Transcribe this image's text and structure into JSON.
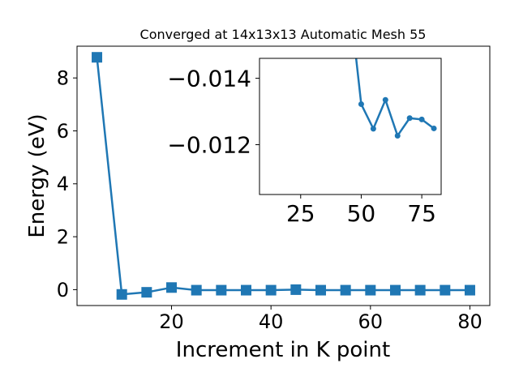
{
  "chart_data": [
    {
      "type": "line",
      "title": "Converged at 14x13x13 Automatic Mesh 55",
      "xlabel": "Increment in K point",
      "ylabel": "Energy (eV)",
      "xlim": [
        1,
        84
      ],
      "ylim": [
        -0.6,
        9.2
      ],
      "x_ticks": [
        20,
        40,
        60,
        80
      ],
      "y_ticks": [
        0,
        2,
        4,
        6,
        8
      ],
      "marker": "square",
      "grid": false,
      "series": [
        {
          "color": "#1f77b4",
          "x": [
            5,
            10,
            15,
            20,
            25,
            30,
            35,
            40,
            45,
            50,
            55,
            60,
            65,
            70,
            75,
            80
          ],
          "y": [
            8.78,
            -0.18,
            -0.1,
            0.08,
            -0.02,
            -0.02,
            -0.02,
            -0.02,
            0.0,
            -0.02,
            -0.02,
            -0.02,
            -0.02,
            -0.02,
            -0.02,
            -0.02
          ]
        }
      ]
    },
    {
      "type": "line",
      "title": "",
      "xlabel": "",
      "ylabel": "",
      "xlim": [
        8,
        83
      ],
      "ylim": [
        -0.0105,
        -0.0146
      ],
      "inverted_y": true,
      "x_ticks": [
        25,
        50,
        75
      ],
      "y_ticks": [
        -0.014,
        -0.012
      ],
      "y_tick_labels": [
        "−0.014",
        "−0.012"
      ],
      "marker": "circle",
      "grid": false,
      "series": [
        {
          "color": "#1f77b4",
          "x": [
            45,
            50,
            55,
            60,
            65,
            70,
            75,
            80
          ],
          "y": [
            -0.0165,
            -0.01322,
            -0.01248,
            -0.01335,
            -0.01227,
            -0.0128,
            -0.01276,
            -0.01249
          ]
        }
      ]
    }
  ]
}
